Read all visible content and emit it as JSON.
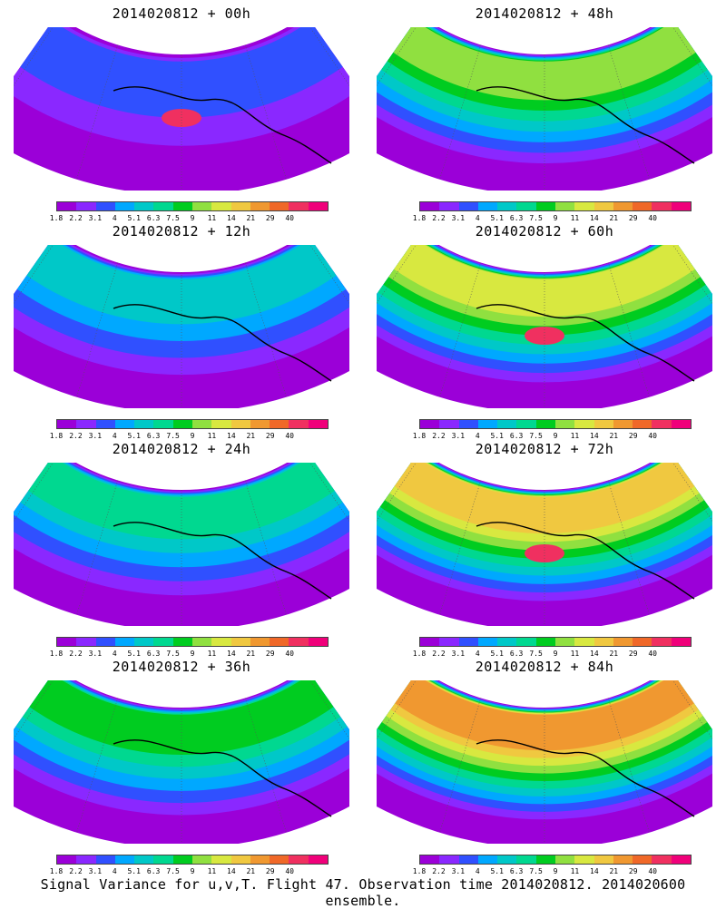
{
  "panels": [
    {
      "title": "2014020812 + 00h",
      "intensity": 0.15,
      "hotspot": true
    },
    {
      "title": "2014020812 + 48h",
      "intensity": 0.55,
      "hotspot": false
    },
    {
      "title": "2014020812 + 12h",
      "intensity": 0.3,
      "hotspot": false
    },
    {
      "title": "2014020812 + 60h",
      "intensity": 0.6,
      "hotspot": true
    },
    {
      "title": "2014020812 + 24h",
      "intensity": 0.4,
      "hotspot": false
    },
    {
      "title": "2014020812 + 72h",
      "intensity": 0.7,
      "hotspot": true
    },
    {
      "title": "2014020812 + 36h",
      "intensity": 0.45,
      "hotspot": false
    },
    {
      "title": "2014020812 + 84h",
      "intensity": 0.75,
      "hotspot": false
    }
  ],
  "colorbar": {
    "colors": [
      "#9b00d8",
      "#8a28ff",
      "#3050ff",
      "#00a8ff",
      "#00c8c8",
      "#00d890",
      "#00cc20",
      "#90e040",
      "#d8e840",
      "#f0c840",
      "#f09830",
      "#f06828",
      "#f03060",
      "#f0007a"
    ],
    "labels": [
      "1.8",
      "2.2",
      "3.1",
      "4",
      "5.1",
      "6.3",
      "7.5",
      "9",
      "11",
      "14",
      "21",
      "29",
      "40"
    ]
  },
  "caption": "Signal Variance for u,v,T. Flight 47. Observation time 2014020812. 2014020600 ensemble."
}
